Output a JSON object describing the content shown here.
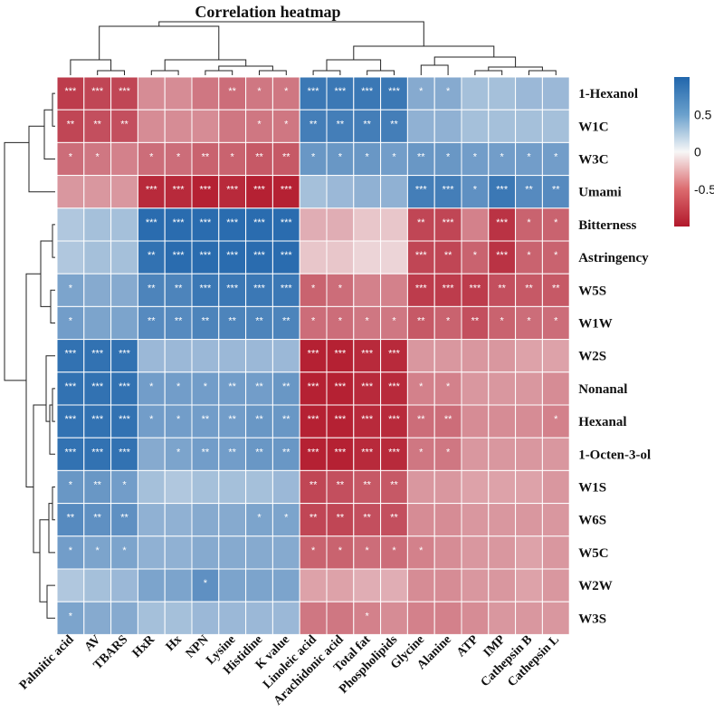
{
  "chart_data": {
    "type": "heatmap",
    "title": "Correlation heatmap",
    "rows": [
      "1-Hexanol",
      "W1C",
      "W3C",
      "Umami",
      "Bitterness",
      "Astringency",
      "W5S",
      "W1W",
      "W2S",
      "Nonanal",
      "Hexanal",
      "1-Octen-3-ol",
      "W1S",
      "W6S",
      "W5C",
      "W2W",
      "W3S"
    ],
    "columns": [
      "Palmitic acid",
      "AV",
      "TBARS",
      "HxR",
      "Hx",
      "NPN",
      "Lysine",
      "Histidine",
      "K value",
      "Linoleic acid",
      "Arachidonic acid",
      "Total fat",
      "Phospholipids",
      "Glycine",
      "Alanine",
      "ATP",
      "IMP",
      "Cathepsin B",
      "Cathepsin L"
    ],
    "values": [
      [
        -0.8,
        -0.75,
        -0.75,
        -0.4,
        -0.4,
        -0.5,
        -0.55,
        -0.5,
        -0.5,
        0.85,
        0.85,
        0.85,
        0.85,
        0.45,
        0.45,
        0.3,
        0.3,
        0.35,
        0.35
      ],
      [
        -0.75,
        -0.7,
        -0.7,
        -0.4,
        -0.4,
        -0.4,
        -0.5,
        -0.5,
        -0.5,
        0.8,
        0.8,
        0.8,
        0.8,
        0.4,
        0.4,
        0.3,
        0.3,
        0.3,
        0.3
      ],
      [
        -0.55,
        -0.5,
        -0.45,
        -0.55,
        -0.55,
        -0.6,
        -0.6,
        -0.65,
        -0.65,
        0.6,
        0.6,
        0.6,
        0.55,
        0.6,
        0.6,
        0.55,
        0.55,
        0.55,
        0.55
      ],
      [
        -0.35,
        -0.35,
        -0.35,
        -0.9,
        -0.9,
        -0.95,
        -0.9,
        -0.95,
        -0.95,
        0.3,
        0.35,
        0.4,
        0.4,
        0.8,
        0.8,
        0.65,
        0.85,
        0.7,
        0.7
      ],
      [
        0.25,
        0.3,
        0.3,
        0.95,
        0.95,
        0.95,
        0.95,
        0.95,
        0.95,
        -0.25,
        -0.25,
        -0.15,
        -0.15,
        -0.75,
        -0.75,
        -0.45,
        -0.85,
        -0.6,
        -0.6
      ],
      [
        0.25,
        0.3,
        0.3,
        0.9,
        0.95,
        0.95,
        0.95,
        0.95,
        0.95,
        -0.15,
        -0.15,
        -0.1,
        -0.1,
        -0.75,
        -0.75,
        -0.6,
        -0.85,
        -0.6,
        -0.6
      ],
      [
        0.5,
        0.45,
        0.45,
        0.75,
        0.75,
        0.85,
        0.85,
        0.85,
        0.85,
        -0.6,
        -0.55,
        -0.45,
        -0.45,
        -0.8,
        -0.8,
        -0.8,
        -0.7,
        -0.65,
        -0.65
      ],
      [
        0.55,
        0.5,
        0.5,
        0.7,
        0.7,
        0.75,
        0.75,
        0.75,
        0.75,
        -0.55,
        -0.55,
        -0.5,
        -0.5,
        -0.65,
        -0.6,
        -0.7,
        -0.6,
        -0.55,
        -0.55
      ],
      [
        0.9,
        0.9,
        0.9,
        0.35,
        0.35,
        0.35,
        0.35,
        0.35,
        0.35,
        -0.95,
        -0.95,
        -0.9,
        -0.9,
        -0.35,
        -0.35,
        -0.35,
        -0.35,
        -0.3,
        -0.3
      ],
      [
        0.9,
        0.9,
        0.9,
        0.55,
        0.55,
        0.55,
        0.55,
        0.55,
        0.6,
        -0.95,
        -0.95,
        -0.9,
        -0.9,
        -0.45,
        -0.45,
        -0.35,
        -0.35,
        -0.35,
        -0.4
      ],
      [
        0.9,
        0.9,
        0.9,
        0.55,
        0.55,
        0.55,
        0.55,
        0.6,
        0.6,
        -0.95,
        -0.95,
        -0.9,
        -0.9,
        -0.55,
        -0.55,
        -0.4,
        -0.4,
        -0.4,
        -0.45
      ],
      [
        0.9,
        0.9,
        0.9,
        0.45,
        0.5,
        0.55,
        0.55,
        0.6,
        0.6,
        -0.95,
        -0.95,
        -0.9,
        -0.9,
        -0.5,
        -0.5,
        -0.35,
        -0.35,
        -0.35,
        -0.35
      ],
      [
        0.6,
        0.6,
        0.55,
        0.3,
        0.25,
        0.3,
        0.3,
        0.3,
        0.35,
        -0.75,
        -0.7,
        -0.65,
        -0.65,
        -0.35,
        -0.35,
        -0.3,
        -0.3,
        -0.3,
        -0.35
      ],
      [
        0.7,
        0.65,
        0.65,
        0.4,
        0.4,
        0.45,
        0.45,
        0.5,
        0.5,
        -0.75,
        -0.75,
        -0.7,
        -0.7,
        -0.4,
        -0.4,
        -0.35,
        -0.35,
        -0.35,
        -0.35
      ],
      [
        0.55,
        0.5,
        0.5,
        0.4,
        0.4,
        0.45,
        0.45,
        0.45,
        0.45,
        -0.6,
        -0.6,
        -0.55,
        -0.55,
        -0.45,
        -0.4,
        -0.35,
        -0.35,
        -0.3,
        -0.35
      ],
      [
        0.25,
        0.3,
        0.35,
        0.5,
        0.5,
        0.65,
        0.5,
        0.5,
        0.5,
        -0.3,
        -0.3,
        -0.25,
        -0.25,
        -0.4,
        -0.4,
        -0.35,
        -0.35,
        -0.3,
        -0.35
      ],
      [
        0.5,
        0.45,
        0.45,
        0.3,
        0.3,
        0.35,
        0.35,
        0.35,
        0.35,
        -0.5,
        -0.5,
        -0.45,
        -0.4,
        -0.45,
        -0.45,
        -0.4,
        -0.35,
        -0.35,
        -0.35
      ]
    ],
    "significance": [
      [
        "***",
        "***",
        "***",
        "",
        "",
        "",
        "**",
        "*",
        "*",
        "***",
        "***",
        "***",
        "***",
        "*",
        "*",
        "",
        "",
        "",
        ""
      ],
      [
        "**",
        "**",
        "**",
        "",
        "",
        "",
        "",
        "*",
        "*",
        "**",
        "**",
        "**",
        "**",
        "",
        "",
        "",
        "",
        "",
        ""
      ],
      [
        "*",
        "*",
        "",
        "*",
        "*",
        "**",
        "*",
        "**",
        "**",
        "*",
        "*",
        "*",
        "*",
        "**",
        "*",
        "*",
        "*",
        "*",
        "*"
      ],
      [
        "",
        "",
        "",
        "***",
        "***",
        "***",
        "***",
        "***",
        "***",
        "",
        "",
        "",
        "",
        "***",
        "***",
        "*",
        "***",
        "**",
        "**"
      ],
      [
        "",
        "",
        "",
        "***",
        "***",
        "***",
        "***",
        "***",
        "***",
        "",
        "",
        "",
        "",
        "**",
        "***",
        "",
        "***",
        "*",
        "*"
      ],
      [
        "",
        "",
        "",
        "**",
        "***",
        "***",
        "***",
        "***",
        "***",
        "",
        "",
        "",
        "",
        "***",
        "**",
        "*",
        "***",
        "*",
        "*"
      ],
      [
        "*",
        "",
        "",
        "**",
        "**",
        "***",
        "***",
        "***",
        "***",
        "*",
        "*",
        "",
        "",
        "***",
        "***",
        "***",
        "**",
        "**",
        "**"
      ],
      [
        "*",
        "",
        "",
        "**",
        "**",
        "**",
        "**",
        "**",
        "**",
        "*",
        "*",
        "*",
        "*",
        "**",
        "*",
        "**",
        "*",
        "*",
        "*"
      ],
      [
        "***",
        "***",
        "***",
        "",
        "",
        "",
        "",
        "",
        "",
        "***",
        "***",
        "***",
        "***",
        "",
        "",
        "",
        "",
        "",
        ""
      ],
      [
        "***",
        "***",
        "***",
        "*",
        "*",
        "*",
        "**",
        "**",
        "**",
        "***",
        "***",
        "***",
        "***",
        "*",
        "*",
        "",
        "",
        "",
        ""
      ],
      [
        "***",
        "***",
        "***",
        "*",
        "*",
        "**",
        "**",
        "**",
        "**",
        "***",
        "***",
        "***",
        "***",
        "**",
        "**",
        "",
        "",
        "",
        "*"
      ],
      [
        "***",
        "***",
        "***",
        "",
        "*",
        "**",
        "**",
        "**",
        "**",
        "***",
        "***",
        "***",
        "***",
        "*",
        "*",
        "",
        "",
        "",
        ""
      ],
      [
        "*",
        "**",
        "*",
        "",
        "",
        "",
        "",
        "",
        "",
        "**",
        "**",
        "**",
        "**",
        "",
        "",
        "",
        "",
        "",
        ""
      ],
      [
        "**",
        "**",
        "**",
        "",
        "",
        "",
        "",
        "*",
        "*",
        "**",
        "**",
        "**",
        "**",
        "",
        "",
        "",
        "",
        "",
        ""
      ],
      [
        "*",
        "*",
        "*",
        "",
        "",
        "",
        "",
        "",
        "",
        "*",
        "*",
        "*",
        "*",
        "*",
        "",
        "",
        "",
        "",
        ""
      ],
      [
        "",
        "",
        "",
        "",
        "",
        "*",
        "",
        "",
        "",
        "",
        "",
        "",
        "",
        "",
        "",
        "",
        "",
        "",
        ""
      ],
      [
        "*",
        "",
        "",
        "",
        "",
        "",
        "",
        "",
        "",
        "",
        "",
        "*",
        "",
        "",
        "",
        "",
        "",
        "",
        ""
      ]
    ],
    "colorbar": {
      "range": [
        -1,
        1
      ],
      "tick_labels": [
        "0.5",
        "0",
        "-0.5"
      ],
      "tick_values": [
        0.5,
        0,
        -0.5
      ],
      "low_color": "#b2182b",
      "mid_color": "#f7f7f7",
      "high_color": "#2166ac"
    }
  }
}
